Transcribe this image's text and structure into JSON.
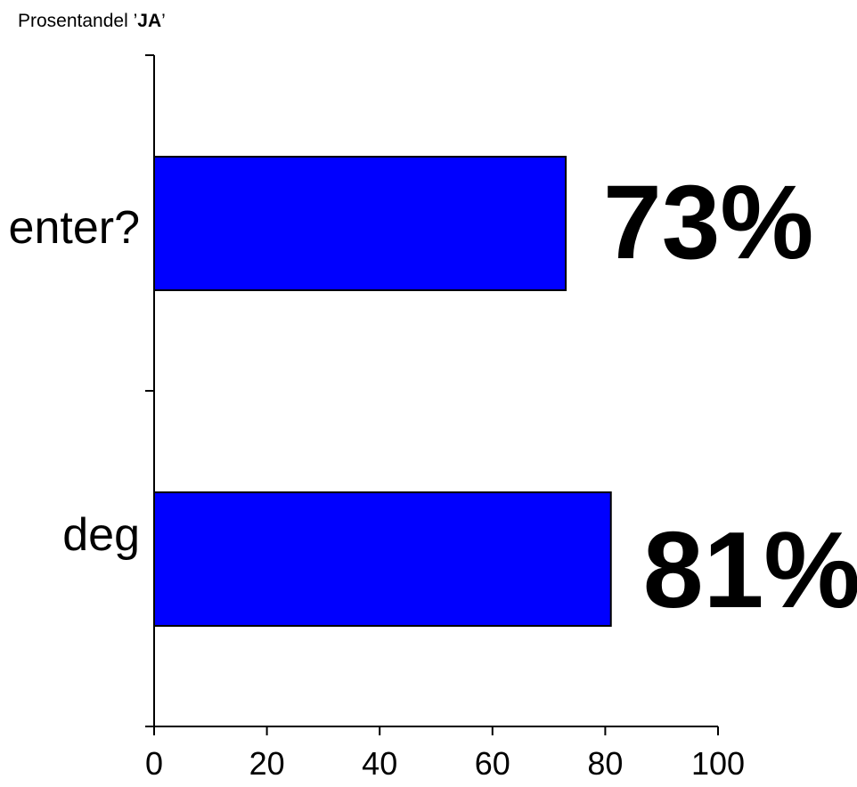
{
  "chart_data": {
    "type": "bar",
    "orientation": "horizontal",
    "title": {
      "prefix": "Prosentandel ’",
      "bold": "JA",
      "suffix": "’"
    },
    "categories": [
      "enter?",
      "deg"
    ],
    "values": [
      73,
      81
    ],
    "data_labels": [
      "73%",
      "81%"
    ],
    "xlim": [
      0,
      100
    ],
    "x_ticks": [
      0,
      20,
      40,
      60,
      80,
      100
    ],
    "grid": false,
    "colors": {
      "bar": "#0000ff",
      "bar_stroke": "#000000",
      "axis": "#000000",
      "text": "#000000"
    }
  }
}
